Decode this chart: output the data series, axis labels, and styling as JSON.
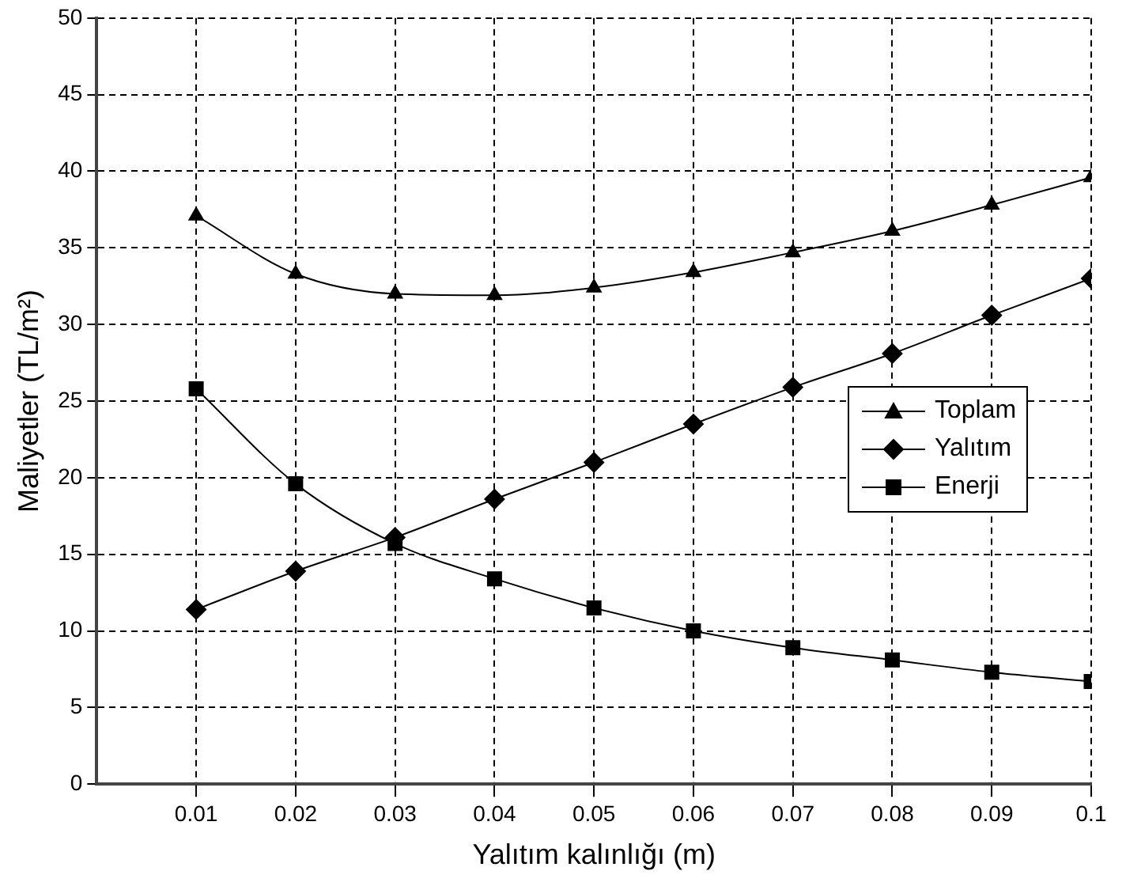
{
  "chart_data": {
    "type": "line",
    "xlabel": "Yalıtım kalınlığı (m)",
    "ylabel": "Maliyetler (TL/m²)",
    "x": [
      0.01,
      0.02,
      0.03,
      0.04,
      0.05,
      0.06,
      0.07,
      0.08,
      0.09,
      0.1
    ],
    "series": [
      {
        "name": "Toplam",
        "color": "#000000",
        "marker": "triangle",
        "values": [
          37.1,
          33.3,
          32.0,
          31.9,
          32.4,
          33.4,
          34.7,
          36.1,
          37.8,
          39.6
        ]
      },
      {
        "name": "Yalıtım",
        "color": "#000000",
        "marker": "diamond",
        "values": [
          11.4,
          13.9,
          16.1,
          18.6,
          21.0,
          23.5,
          25.9,
          28.1,
          30.6,
          33.0
        ]
      },
      {
        "name": "Enerji",
        "color": "#000000",
        "marker": "square",
        "values": [
          25.8,
          19.6,
          15.7,
          13.4,
          11.5,
          10.0,
          8.9,
          8.1,
          7.3,
          6.7
        ]
      }
    ],
    "xlim": [
      0,
      0.1
    ],
    "xticks": [
      0.01,
      0.02,
      0.03,
      0.04,
      0.05,
      0.06,
      0.07,
      0.08,
      0.09,
      0.1
    ],
    "ylim": [
      0,
      50
    ],
    "yticks": [
      0,
      5,
      10,
      15,
      20,
      25,
      30,
      35,
      40,
      45,
      50
    ],
    "grid": true,
    "legend": "right",
    "line_style": "solid"
  }
}
